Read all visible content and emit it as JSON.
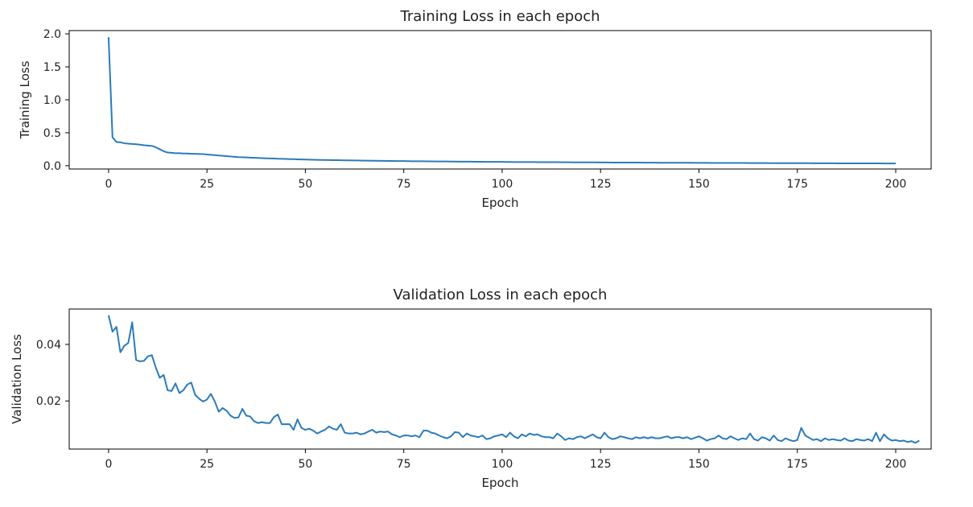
{
  "chart_data": [
    {
      "type": "line",
      "title": "Training Loss in each epoch",
      "xlabel": "Epoch",
      "ylabel": "Training Loss",
      "xlim": [
        -10,
        209
      ],
      "ylim": [
        -0.05,
        2.05
      ],
      "xticks": [
        0,
        25,
        50,
        75,
        100,
        125,
        150,
        175,
        200
      ],
      "xtick_labels": [
        "0",
        "25",
        "50",
        "75",
        "100",
        "125",
        "150",
        "175",
        "200"
      ],
      "yticks": [
        0.0,
        0.5,
        1.0,
        1.5,
        2.0
      ],
      "ytick_labels": [
        "0.0",
        "0.5",
        "1.0",
        "1.5",
        "2.0"
      ],
      "grid": false,
      "color": "#2b7bba",
      "x_start": 0,
      "y": [
        1.95,
        0.43,
        0.36,
        0.355,
        0.34,
        0.335,
        0.33,
        0.325,
        0.32,
        0.31,
        0.305,
        0.3,
        0.28,
        0.25,
        0.22,
        0.2,
        0.195,
        0.19,
        0.19,
        0.185,
        0.185,
        0.18,
        0.18,
        0.178,
        0.176,
        0.17,
        0.165,
        0.16,
        0.155,
        0.15,
        0.145,
        0.14,
        0.135,
        0.13,
        0.128,
        0.125,
        0.122,
        0.12,
        0.118,
        0.115,
        0.112,
        0.11,
        0.108,
        0.106,
        0.104,
        0.102,
        0.1,
        0.099,
        0.097,
        0.095,
        0.094,
        0.092,
        0.09,
        0.089,
        0.088,
        0.087,
        0.086,
        0.085,
        0.084,
        0.083,
        0.082,
        0.081,
        0.08,
        0.079,
        0.078,
        0.077,
        0.076,
        0.075,
        0.075,
        0.074,
        0.073,
        0.072,
        0.072,
        0.071,
        0.07,
        0.07,
        0.069,
        0.068,
        0.068,
        0.067,
        0.067,
        0.066,
        0.066,
        0.065,
        0.065,
        0.064,
        0.064,
        0.063,
        0.063,
        0.062,
        0.062,
        0.061,
        0.061,
        0.06,
        0.06,
        0.06,
        0.059,
        0.059,
        0.058,
        0.058,
        0.058,
        0.057,
        0.057,
        0.056,
        0.056,
        0.056,
        0.055,
        0.055,
        0.055,
        0.054,
        0.054,
        0.054,
        0.053,
        0.053,
        0.053,
        0.052,
        0.052,
        0.052,
        0.051,
        0.051,
        0.051,
        0.05,
        0.05,
        0.05,
        0.05,
        0.049,
        0.049,
        0.049,
        0.048,
        0.048,
        0.048,
        0.048,
        0.047,
        0.047,
        0.047,
        0.047,
        0.046,
        0.046,
        0.046,
        0.046,
        0.045,
        0.045,
        0.045,
        0.045,
        0.044,
        0.044,
        0.044,
        0.044,
        0.044,
        0.043,
        0.043,
        0.043,
        0.043,
        0.042,
        0.042,
        0.042,
        0.042,
        0.042,
        0.041,
        0.041,
        0.041,
        0.041,
        0.041,
        0.04,
        0.04,
        0.04,
        0.04,
        0.04,
        0.039,
        0.039,
        0.039,
        0.039,
        0.039,
        0.038,
        0.038,
        0.038,
        0.038,
        0.038,
        0.038,
        0.037,
        0.037,
        0.037,
        0.037,
        0.037,
        0.037,
        0.036,
        0.036,
        0.036,
        0.036,
        0.036,
        0.036,
        0.035,
        0.035,
        0.035,
        0.035,
        0.035,
        0.035,
        0.034,
        0.034,
        0.034,
        0.034
      ]
    },
    {
      "type": "line",
      "title": "Validation Loss in each epoch",
      "xlabel": "Epoch",
      "ylabel": "Validation Loss",
      "xlim": [
        -10,
        209
      ],
      "ylim": [
        0.003,
        0.0525
      ],
      "xticks": [
        0,
        25,
        50,
        75,
        100,
        125,
        150,
        175,
        200
      ],
      "xtick_labels": [
        "0",
        "25",
        "50",
        "75",
        "100",
        "125",
        "150",
        "175",
        "200"
      ],
      "yticks": [
        0.02,
        0.04
      ],
      "ytick_labels": [
        "0.02",
        "0.04"
      ],
      "grid": false,
      "color": "#2b7bba",
      "x_start": 0,
      "y": [
        0.0503,
        0.0445,
        0.0462,
        0.0372,
        0.0395,
        0.0405,
        0.0478,
        0.0345,
        0.034,
        0.0342,
        0.0358,
        0.0362,
        0.0318,
        0.0282,
        0.0292,
        0.0238,
        0.0235,
        0.0262,
        0.0228,
        0.0238,
        0.0258,
        0.0265,
        0.0222,
        0.0208,
        0.0198,
        0.0205,
        0.0225,
        0.0198,
        0.0162,
        0.0175,
        0.0165,
        0.0148,
        0.014,
        0.0142,
        0.0172,
        0.0148,
        0.0145,
        0.0128,
        0.0122,
        0.0125,
        0.0122,
        0.0122,
        0.0143,
        0.0152,
        0.0118,
        0.0118,
        0.0118,
        0.0098,
        0.0135,
        0.0105,
        0.0098,
        0.0102,
        0.0095,
        0.0085,
        0.0092,
        0.0098,
        0.011,
        0.0102,
        0.0098,
        0.0118,
        0.0088,
        0.0085,
        0.0085,
        0.0088,
        0.0082,
        0.0085,
        0.0092,
        0.0098,
        0.0088,
        0.0092,
        0.009,
        0.0092,
        0.0082,
        0.0078,
        0.0072,
        0.0078,
        0.0078,
        0.0075,
        0.0078,
        0.0072,
        0.0095,
        0.0095,
        0.0088,
        0.0085,
        0.0078,
        0.0072,
        0.0068,
        0.0075,
        0.009,
        0.0088,
        0.0072,
        0.0085,
        0.0078,
        0.0075,
        0.0072,
        0.0078,
        0.0065,
        0.0068,
        0.0075,
        0.0078,
        0.0082,
        0.0072,
        0.0088,
        0.0075,
        0.0068,
        0.0082,
        0.0075,
        0.0085,
        0.008,
        0.0082,
        0.0075,
        0.0072,
        0.0072,
        0.0068,
        0.0085,
        0.0075,
        0.0062,
        0.0068,
        0.0065,
        0.0072,
        0.0075,
        0.0068,
        0.0075,
        0.0082,
        0.0072,
        0.0068,
        0.0088,
        0.0072,
        0.0065,
        0.0068,
        0.0075,
        0.0072,
        0.0068,
        0.0065,
        0.0072,
        0.0068,
        0.0072,
        0.0068,
        0.0072,
        0.0068,
        0.0068,
        0.0072,
        0.0075,
        0.0068,
        0.0072,
        0.0072,
        0.0068,
        0.0072,
        0.0065,
        0.007,
        0.0075,
        0.0068,
        0.006,
        0.0065,
        0.0068,
        0.0078,
        0.0068,
        0.0065,
        0.0075,
        0.0068,
        0.0062,
        0.0068,
        0.0065,
        0.0085,
        0.0065,
        0.006,
        0.0072,
        0.0068,
        0.006,
        0.0078,
        0.0062,
        0.0058,
        0.0068,
        0.0062,
        0.0058,
        0.0062,
        0.0105,
        0.0078,
        0.007,
        0.0062,
        0.0065,
        0.0058,
        0.0068,
        0.0062,
        0.0065,
        0.0062,
        0.006,
        0.0068,
        0.006,
        0.0058,
        0.0065,
        0.0062,
        0.006,
        0.0065,
        0.0058,
        0.0088,
        0.0058,
        0.0082,
        0.0068,
        0.006,
        0.0062,
        0.0058,
        0.006,
        0.0055,
        0.0058,
        0.0052,
        0.006
      ]
    }
  ]
}
